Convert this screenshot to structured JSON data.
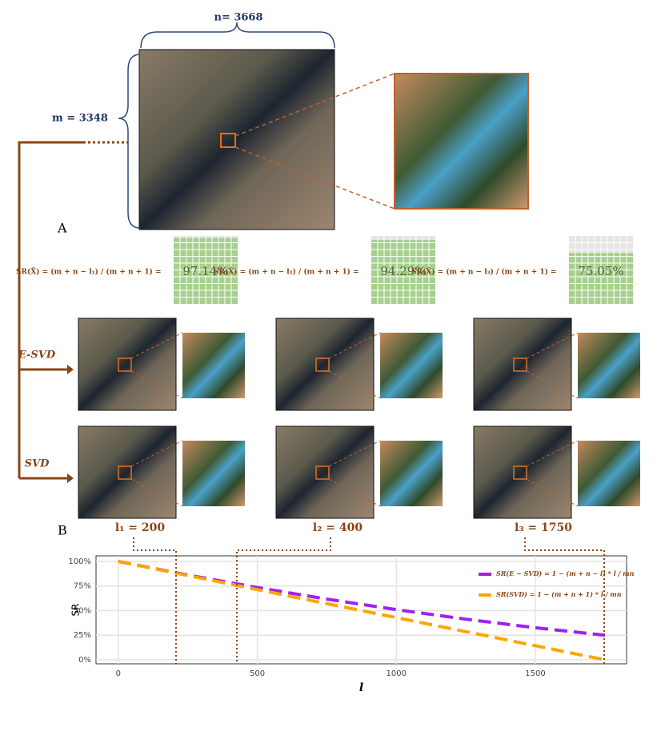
{
  "panel_a": {
    "label": "A",
    "n_label": "n= 3668",
    "m_label": "m = 3348",
    "formulas": [
      "SR(X̂) = (m + n − l₁) / (m + n + 1) =",
      "SR(X̂) = (m + n − l₂) / (m + n + 1) =",
      "SR(X̂) = (m + n − l₃) / (m + n + 1) ="
    ],
    "sr_values": [
      97.14,
      94.29,
      75.05
    ],
    "sr_value_labels": [
      "97.14%",
      "94.29%",
      "75.05%"
    ],
    "row_labels": [
      "E-SVD",
      "SVD"
    ],
    "l_labels": [
      "l₁ = 200",
      "l₂ = 400",
      "l₃ = 1750"
    ]
  },
  "chart_data": {
    "type": "line",
    "panel_label": "B",
    "x_label": "l",
    "y_label": "SR",
    "x": [
      0,
      250,
      500,
      750,
      1000,
      1250,
      1500,
      1750
    ],
    "series": [
      {
        "name": "SR(E − SVD) = 1 − (m + n − l) * l / mn",
        "color": "#a020f0",
        "values": [
          100,
          86.2,
          73.5,
          61.7,
          51.0,
          41.3,
          32.6,
          25.0
        ]
      },
      {
        "name": "SR(SVD) = 1 − (m + n + 1) * l / mn",
        "color": "#ffa500",
        "values": [
          100,
          85.7,
          71.4,
          57.1,
          42.9,
          28.6,
          14.3,
          0
        ]
      }
    ],
    "xlim": [
      -80,
      1828
    ],
    "ylim": [
      -4.1,
      105.7
    ],
    "xticks": [
      0,
      500,
      1000,
      1500
    ],
    "yticks": [
      {
        "value": 0,
        "label": "0%"
      },
      {
        "value": 25,
        "label": "25%"
      },
      {
        "value": 50,
        "label": "50%"
      },
      {
        "value": 75,
        "label": "75%"
      },
      {
        "value": 100,
        "label": "100%"
      }
    ],
    "grid": true
  }
}
